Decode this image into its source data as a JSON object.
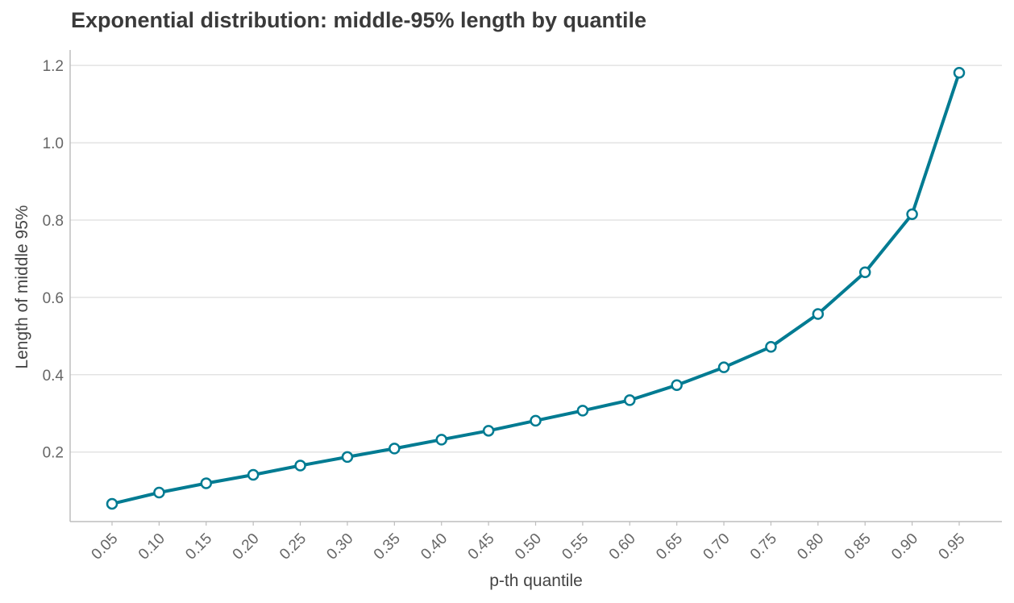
{
  "colors": {
    "line": "#007b92",
    "grid": "#e3e3e3",
    "axis": "#bdbdbd",
    "marker_fill": "#ffffff"
  },
  "chart_data": {
    "type": "line",
    "title": "Exponential distribution: middle-95% length by quantile",
    "xlabel": "p-th quantile",
    "ylabel": "Length of middle 95%",
    "categories": [
      "0.05",
      "0.10",
      "0.15",
      "0.20",
      "0.25",
      "0.30",
      "0.35",
      "0.40",
      "0.45",
      "0.50",
      "0.55",
      "0.60",
      "0.65",
      "0.70",
      "0.75",
      "0.80",
      "0.85",
      "0.90",
      "0.95"
    ],
    "values": [
      0.066,
      0.095,
      0.119,
      0.141,
      0.165,
      0.187,
      0.209,
      0.232,
      0.255,
      0.281,
      0.307,
      0.334,
      0.373,
      0.419,
      0.472,
      0.557,
      0.665,
      0.815,
      1.181
    ],
    "ylim": [
      0.02,
      1.24
    ],
    "yticks": [
      0.2,
      0.4,
      0.6,
      0.8,
      1.0,
      1.2
    ],
    "ytick_labels": [
      "0.2",
      "0.4",
      "0.6",
      "0.8",
      "1.0",
      "1.2"
    ],
    "grid": "horizontal",
    "legend": "none"
  }
}
